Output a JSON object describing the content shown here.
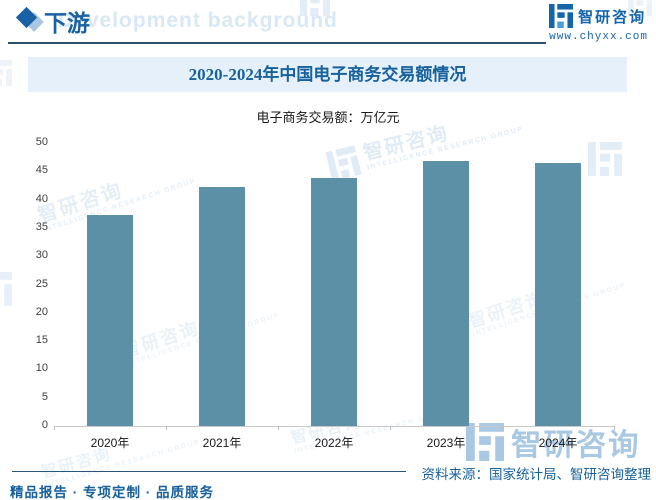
{
  "header": {
    "section_label": "下游",
    "section_bg_text": "Development background",
    "brand_name": "智研咨询",
    "brand_url": "www.chyxx.com"
  },
  "chart": {
    "title": "2020-2024年中国电子商务交易额情况",
    "subtitle": "电子商务交易额：万亿元"
  },
  "chart_data": {
    "type": "bar",
    "categories": [
      "2020年",
      "2021年",
      "2022年",
      "2023年",
      "2024年"
    ],
    "values": [
      37.2,
      42.3,
      43.8,
      46.8,
      46.4
    ],
    "title": "2020-2024年中国电子商务交易额情况",
    "xlabel": "",
    "ylabel": "电子商务交易额：万亿元",
    "ylim": [
      0,
      50
    ],
    "ytick_step": 5,
    "grid": false,
    "legend": null,
    "bar_color": "#5b90a6"
  },
  "footer": {
    "source": "资料来源：国家统计局、智研咨询整理",
    "tagline": "精品报告 · 专项定制 · 品质服务"
  },
  "watermark": {
    "text": "智研咨询",
    "subtext": "INTELLIGENCE RESEARCH GROUP"
  },
  "colors": {
    "accent_dark_blue": "#1a61a3",
    "brand_blue": "#1565ab",
    "title_band_bg": "#e5f0fa",
    "bar": "#5b90a6",
    "footer_text": "#17609c",
    "watermark_light": "#ccdff0",
    "watermark_strong": "#9fc3e0"
  }
}
